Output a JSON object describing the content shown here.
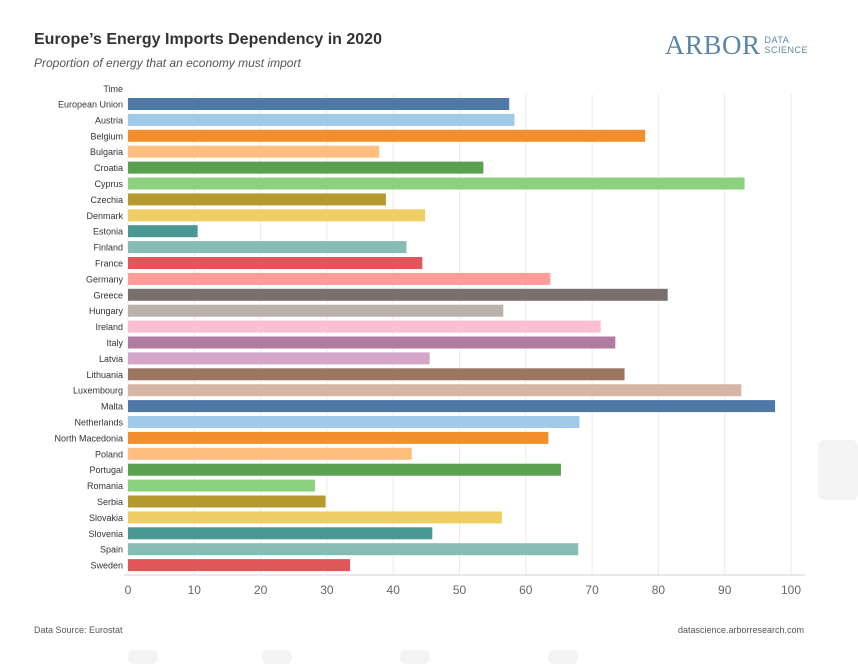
{
  "header": {
    "title": "Europe’s Energy Imports Dependency in 2020",
    "subtitle": "Proportion of energy that an economy must import"
  },
  "logo": {
    "main": "ARBOR",
    "sub_line1": "DATA",
    "sub_line2": "SCIENCE"
  },
  "footer": {
    "source": "Data Source: Eurostat",
    "url": "datascience.arborresearch.com"
  },
  "chart_data": {
    "type": "bar",
    "orientation": "horizontal",
    "row_header": "Time",
    "categories": [
      "European Union",
      "Austria",
      "Belgium",
      "Bulgaria",
      "Croatia",
      "Cyprus",
      "Czechia",
      "Denmark",
      "Estonia",
      "Finland",
      "France",
      "Germany",
      "Greece",
      "Hungary",
      "Ireland",
      "Italy",
      "Latvia",
      "Lithuania",
      "Luxembourg",
      "Malta",
      "Netherlands",
      "North Macedonia",
      "Poland",
      "Portugal",
      "Romania",
      "Serbia",
      "Slovakia",
      "Slovenia",
      "Spain",
      "Sweden"
    ],
    "values": [
      57.5,
      58.3,
      78.0,
      37.9,
      53.6,
      93.0,
      38.9,
      44.8,
      10.5,
      42.0,
      44.4,
      63.7,
      81.4,
      56.6,
      71.3,
      73.5,
      45.5,
      74.9,
      92.5,
      97.6,
      68.1,
      63.4,
      42.8,
      65.3,
      28.2,
      29.8,
      56.4,
      45.9,
      67.9,
      33.5
    ],
    "colors": [
      "#4e79a7",
      "#a0cbe8",
      "#f28e2b",
      "#ffbe7d",
      "#59a14f",
      "#8cd17d",
      "#b6992d",
      "#f1ce63",
      "#499894",
      "#86bcb6",
      "#e15759",
      "#ff9d9a",
      "#79706e",
      "#bab0ac",
      "#fabfd2",
      "#b07aa1",
      "#d4a6c8",
      "#9d7660",
      "#d7b5a6",
      "#4e79a7",
      "#a0cbe8",
      "#f28e2b",
      "#ffbe7d",
      "#59a14f",
      "#8cd17d",
      "#b6992d",
      "#f1ce63",
      "#499894",
      "#86bcb6",
      "#e15759"
    ],
    "xlim": [
      0,
      100
    ],
    "xticks": [
      0,
      10,
      20,
      30,
      40,
      50,
      60,
      70,
      80,
      90,
      100
    ],
    "grid": true,
    "legend": "none"
  }
}
